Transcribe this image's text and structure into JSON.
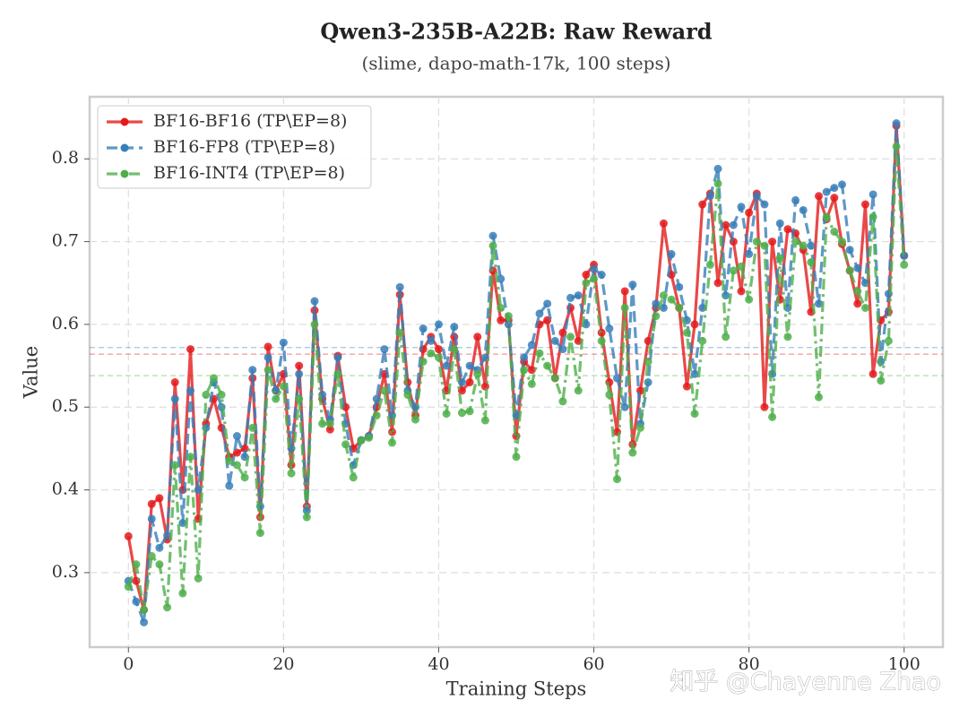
{
  "chart_data": {
    "type": "line",
    "title": "Qwen3-235B-A22B: Raw Reward",
    "subtitle": "(slime, dapo-math-17k, 100 steps)",
    "x_label": "Training Steps",
    "y_label": "Value",
    "watermark": "知乎 @Chayenne Zhao",
    "x": [
      0,
      1,
      2,
      3,
      4,
      5,
      6,
      7,
      8,
      9,
      10,
      11,
      12,
      13,
      14,
      15,
      16,
      17,
      18,
      19,
      20,
      21,
      22,
      23,
      24,
      25,
      26,
      27,
      28,
      29,
      30,
      31,
      32,
      33,
      34,
      35,
      36,
      37,
      38,
      39,
      40,
      41,
      42,
      43,
      44,
      45,
      46,
      47,
      48,
      49,
      50,
      51,
      52,
      53,
      54,
      55,
      56,
      57,
      58,
      59,
      60,
      61,
      62,
      63,
      64,
      65,
      66,
      67,
      68,
      69,
      70,
      71,
      72,
      73,
      74,
      75,
      76,
      77,
      78,
      79,
      80,
      81,
      82,
      83,
      84,
      85,
      86,
      87,
      88,
      89,
      90,
      91,
      92,
      93,
      94,
      95,
      96,
      97,
      98,
      99,
      100
    ],
    "xlim": [
      -5,
      105
    ],
    "xticks": [
      0,
      20,
      40,
      60,
      80,
      100
    ],
    "ylim": [
      0.21,
      0.875
    ],
    "yticks": [
      0.3,
      0.4,
      0.5,
      0.6,
      0.7,
      0.8
    ],
    "grid": true,
    "legend": "upper left",
    "series": [
      {
        "name": "BF16-BF16 (TP\\EP=8)",
        "color": "#e41a1c",
        "dash": "solid",
        "mean": 0.564,
        "values": [
          0.344,
          0.29,
          0.255,
          0.383,
          0.39,
          0.34,
          0.53,
          0.4,
          0.57,
          0.365,
          0.48,
          0.51,
          0.475,
          0.44,
          0.445,
          0.45,
          0.535,
          0.367,
          0.573,
          0.52,
          0.54,
          0.43,
          0.55,
          0.38,
          0.617,
          0.51,
          0.473,
          0.562,
          0.5,
          0.45,
          0.46,
          0.465,
          0.5,
          0.54,
          0.47,
          0.636,
          0.53,
          0.49,
          0.57,
          0.585,
          0.57,
          0.52,
          0.585,
          0.52,
          0.53,
          0.585,
          0.525,
          0.665,
          0.605,
          0.605,
          0.465,
          0.555,
          0.545,
          0.6,
          0.605,
          0.535,
          0.59,
          0.62,
          0.58,
          0.66,
          0.672,
          0.59,
          0.53,
          0.47,
          0.64,
          0.455,
          0.52,
          0.58,
          0.62,
          0.722,
          0.66,
          0.62,
          0.525,
          0.6,
          0.745,
          0.758,
          0.65,
          0.72,
          0.7,
          0.64,
          0.735,
          0.758,
          0.5,
          0.7,
          0.63,
          0.715,
          0.71,
          0.69,
          0.615,
          0.755,
          0.727,
          0.753,
          0.697,
          0.665,
          0.625,
          0.745,
          0.54,
          0.605,
          0.615,
          0.84,
          0.683
        ]
      },
      {
        "name": "BF16-FP8 (TP\\EP=8)",
        "color": "#377eb8",
        "dash": "dashed",
        "mean": 0.572,
        "values": [
          0.29,
          0.265,
          0.24,
          0.365,
          0.33,
          0.345,
          0.51,
          0.36,
          0.52,
          0.4,
          0.475,
          0.53,
          0.5,
          0.405,
          0.465,
          0.44,
          0.545,
          0.38,
          0.56,
          0.52,
          0.578,
          0.45,
          0.54,
          0.375,
          0.628,
          0.515,
          0.485,
          0.56,
          0.48,
          0.43,
          0.46,
          0.465,
          0.51,
          0.57,
          0.49,
          0.645,
          0.52,
          0.5,
          0.595,
          0.58,
          0.6,
          0.55,
          0.597,
          0.53,
          0.55,
          0.545,
          0.56,
          0.707,
          0.655,
          0.6,
          0.49,
          0.56,
          0.575,
          0.613,
          0.625,
          0.58,
          0.57,
          0.632,
          0.635,
          0.6,
          0.667,
          0.66,
          0.595,
          0.535,
          0.5,
          0.648,
          0.48,
          0.53,
          0.625,
          0.62,
          0.685,
          0.645,
          0.605,
          0.54,
          0.62,
          0.755,
          0.788,
          0.635,
          0.72,
          0.742,
          0.685,
          0.755,
          0.745,
          0.54,
          0.722,
          0.62,
          0.75,
          0.738,
          0.695,
          0.625,
          0.76,
          0.765,
          0.769,
          0.69,
          0.668,
          0.65,
          0.757,
          0.555,
          0.637,
          0.843,
          0.683
        ]
      },
      {
        "name": "BF16-INT4 (TP\\EP=8)",
        "color": "#4daf4a",
        "dash": "dashdot",
        "mean": 0.538,
        "values": [
          0.283,
          0.31,
          0.255,
          0.32,
          0.31,
          0.258,
          0.43,
          0.275,
          0.44,
          0.293,
          0.515,
          0.535,
          0.515,
          0.435,
          0.43,
          0.415,
          0.475,
          0.348,
          0.545,
          0.51,
          0.525,
          0.42,
          0.51,
          0.367,
          0.6,
          0.48,
          0.48,
          0.54,
          0.455,
          0.415,
          0.46,
          0.463,
          0.49,
          0.52,
          0.457,
          0.59,
          0.515,
          0.485,
          0.555,
          0.565,
          0.56,
          0.492,
          0.57,
          0.493,
          0.495,
          0.54,
          0.484,
          0.695,
          0.62,
          0.61,
          0.44,
          0.545,
          0.528,
          0.565,
          0.55,
          0.535,
          0.507,
          0.585,
          0.52,
          0.65,
          0.655,
          0.58,
          0.515,
          0.413,
          0.62,
          0.445,
          0.475,
          0.555,
          0.61,
          0.635,
          0.63,
          0.62,
          0.59,
          0.492,
          0.58,
          0.672,
          0.77,
          0.585,
          0.665,
          0.67,
          0.63,
          0.7,
          0.695,
          0.488,
          0.68,
          0.585,
          0.7,
          0.695,
          0.675,
          0.512,
          0.73,
          0.712,
          0.7,
          0.665,
          0.64,
          0.62,
          0.73,
          0.532,
          0.58,
          0.815,
          0.672
        ]
      }
    ]
  }
}
